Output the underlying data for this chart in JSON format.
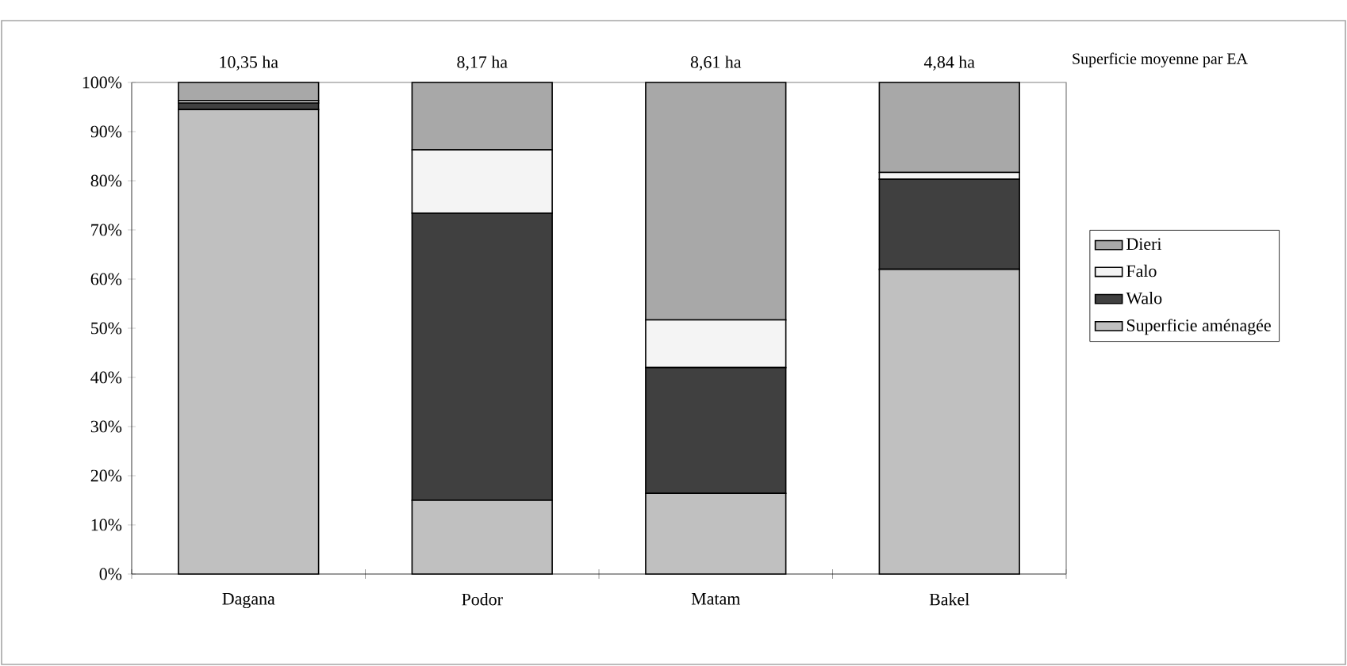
{
  "chart_data": {
    "type": "bar",
    "stacked": true,
    "categories": [
      "Dagana",
      "Podor",
      "Matam",
      "Bakel"
    ],
    "series": [
      {
        "name": "Superficie aménagée",
        "color": "#c0c0c0",
        "values": [
          94.5,
          15,
          16.4,
          62
        ]
      },
      {
        "name": "Walo",
        "color": "#404040",
        "values": [
          1.3,
          58.4,
          25.6,
          18.3
        ]
      },
      {
        "name": "Falo",
        "color": "#f4f4f4",
        "values": [
          0.5,
          12.9,
          9.7,
          1.4
        ]
      },
      {
        "name": "Dieri",
        "color": "#a8a8a8",
        "values": [
          3.7,
          13.7,
          48.3,
          18.3
        ]
      }
    ],
    "ylim": [
      0,
      100
    ],
    "yticks": [
      {
        "value": 0,
        "label": "0%"
      },
      {
        "value": 10,
        "label": "10%"
      },
      {
        "value": 20,
        "label": "20%"
      },
      {
        "value": 30,
        "label": "30%"
      },
      {
        "value": 40,
        "label": "40%"
      },
      {
        "value": 50,
        "label": "50%"
      },
      {
        "value": 60,
        "label": "60%"
      },
      {
        "value": 70,
        "label": "70%"
      },
      {
        "value": 80,
        "label": "80%"
      },
      {
        "value": 90,
        "label": "90%"
      },
      {
        "value": 100,
        "label": "100%"
      }
    ],
    "annotations": [
      "10,35 ha",
      "8,17 ha",
      "8,61 ha",
      "4,84 ha",
      "Superficie moyenne par EA"
    ],
    "legend": "right"
  }
}
